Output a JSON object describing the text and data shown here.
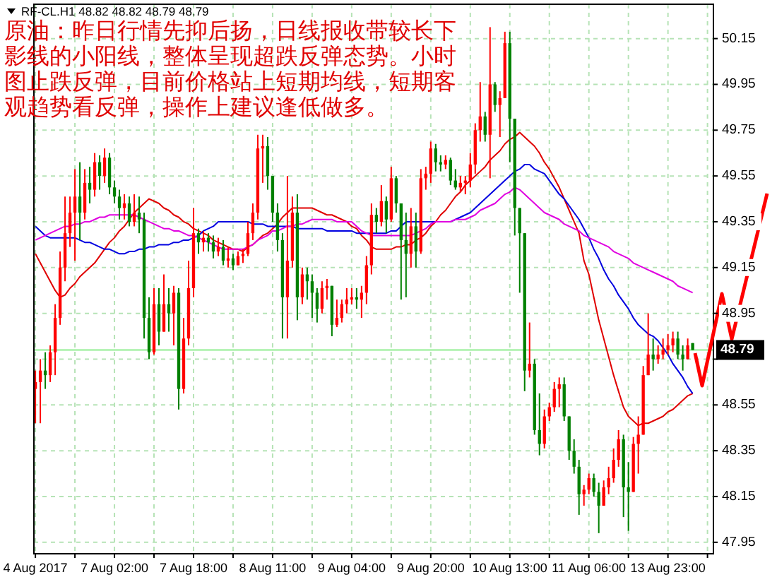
{
  "chart_data": {
    "type": "candlestick",
    "annotations": [
      "RF-CL.H1 48.82 48.82 48.79 48.79",
      "原油：昨日行情先抑后扬，日线报收带较长下影线的小阳线，整体呈现超跌反弹态势。小时图止跌反弹，目前价格站上短期均线，短期客观趋势看反弹，操作上建议逢低做多。"
    ],
    "categories": [
      "4 Aug 2017",
      null,
      null,
      null,
      null,
      null,
      null,
      null,
      null,
      null,
      null,
      null,
      null,
      null,
      null,
      null,
      "7 Aug 02:00",
      null,
      null,
      null,
      null,
      null,
      null,
      null,
      null,
      null,
      null,
      null,
      null,
      null,
      null,
      null,
      "7 Aug 18:00",
      null,
      null,
      null,
      null,
      null,
      null,
      null,
      null,
      null,
      null,
      null,
      null,
      null,
      null,
      null,
      "8 Aug 11:00",
      null,
      null,
      null,
      null,
      null,
      null,
      null,
      null,
      null,
      null,
      null,
      null,
      null,
      null,
      null,
      "9 Aug 04:00",
      null,
      null,
      null,
      null,
      null,
      null,
      null,
      null,
      null,
      null,
      null,
      null,
      null,
      null,
      null,
      "9 Aug 20:00",
      null,
      null,
      null,
      null,
      null,
      null,
      null,
      null,
      null,
      null,
      null,
      null,
      null,
      null,
      null,
      "10 Aug 13:00",
      null,
      null,
      null,
      null,
      null,
      null,
      null,
      null,
      null,
      null,
      null,
      null,
      null,
      null,
      null,
      "11 Aug 06:00",
      null,
      null,
      null,
      null,
      null,
      null,
      null,
      null,
      null,
      null,
      null,
      null,
      null,
      null,
      null,
      "13 Aug 23:00",
      null,
      null,
      null,
      null,
      null
    ],
    "ohlc": [
      [
        48.62,
        48.7,
        48.47,
        48.65
      ],
      [
        48.65,
        48.75,
        48.47,
        48.7
      ],
      [
        48.7,
        48.78,
        48.62,
        48.68
      ],
      [
        48.68,
        48.81,
        48.65,
        48.78
      ],
      [
        48.78,
        48.99,
        48.68,
        48.93
      ],
      [
        48.93,
        49.22,
        48.9,
        49.15
      ],
      [
        49.15,
        49.46,
        49.09,
        49.3
      ],
      [
        49.3,
        49.46,
        49.24,
        49.39
      ],
      [
        49.39,
        49.58,
        49.18,
        49.46
      ],
      [
        49.46,
        49.61,
        49.27,
        49.39
      ],
      [
        49.39,
        49.58,
        49.36,
        49.52
      ],
      [
        49.52,
        49.59,
        49.43,
        49.49
      ],
      [
        49.49,
        49.65,
        49.46,
        49.61
      ],
      [
        49.61,
        49.64,
        49.49,
        49.55
      ],
      [
        49.55,
        49.67,
        49.52,
        49.63
      ],
      [
        49.63,
        49.65,
        49.47,
        49.5
      ],
      [
        49.5,
        49.53,
        49.43,
        49.46
      ],
      [
        49.46,
        49.49,
        49.36,
        49.41
      ],
      [
        49.41,
        49.47,
        49.36,
        49.43
      ],
      [
        49.43,
        49.46,
        49.33,
        49.35
      ],
      [
        49.35,
        49.47,
        49.33,
        49.39
      ],
      [
        49.39,
        49.46,
        49.3,
        49.36
      ],
      [
        49.36,
        49.39,
        48.84,
        48.93
      ],
      [
        48.93,
        49.02,
        48.75,
        48.78
      ],
      [
        48.78,
        49.06,
        48.77,
        48.99
      ],
      [
        48.99,
        49.06,
        48.81,
        48.87
      ],
      [
        48.87,
        49.12,
        48.87,
        48.99
      ],
      [
        48.99,
        49.06,
        48.87,
        48.95
      ],
      [
        48.95,
        49.07,
        48.81,
        49.04
      ],
      [
        49.04,
        49.06,
        48.53,
        48.62
      ],
      [
        48.62,
        48.93,
        48.6,
        48.84
      ],
      [
        48.84,
        49.18,
        48.81,
        49.06
      ],
      [
        49.06,
        49.41,
        49.02,
        49.3
      ],
      [
        49.3,
        49.32,
        49.21,
        49.26
      ],
      [
        49.26,
        49.31,
        49.22,
        49.28
      ],
      [
        49.28,
        49.3,
        49.22,
        49.26
      ],
      [
        49.26,
        49.29,
        49.19,
        49.22
      ],
      [
        49.22,
        49.28,
        49.2,
        49.24
      ],
      [
        49.24,
        49.27,
        49.16,
        49.18
      ],
      [
        49.18,
        49.24,
        49.15,
        49.19
      ],
      [
        49.19,
        49.21,
        49.14,
        49.16
      ],
      [
        49.16,
        49.22,
        49.16,
        49.2
      ],
      [
        49.2,
        49.23,
        49.17,
        49.21
      ],
      [
        49.21,
        49.35,
        49.2,
        49.3
      ],
      [
        49.3,
        49.43,
        49.27,
        49.39
      ],
      [
        49.39,
        49.73,
        49.36,
        49.67
      ],
      [
        49.67,
        49.73,
        49.52,
        49.68
      ],
      [
        49.68,
        49.72,
        49.49,
        49.55
      ],
      [
        49.55,
        49.55,
        49.35,
        49.39
      ],
      [
        49.39,
        49.43,
        49.22,
        49.27
      ],
      [
        49.27,
        49.3,
        48.84,
        49.02
      ],
      [
        49.02,
        49.55,
        48.84,
        49.18
      ],
      [
        49.18,
        49.46,
        49.15,
        49.39
      ],
      [
        49.39,
        49.47,
        48.92,
        49.02
      ],
      [
        49.02,
        49.15,
        48.99,
        49.12
      ],
      [
        49.12,
        49.15,
        49.01,
        49.09
      ],
      [
        49.09,
        49.12,
        48.93,
        49.04
      ],
      [
        49.04,
        49.06,
        48.91,
        48.97
      ],
      [
        48.97,
        49.09,
        48.95,
        49.06
      ],
      [
        49.06,
        49.1,
        49.01,
        49.07
      ],
      [
        49.07,
        49.07,
        48.85,
        48.9
      ],
      [
        48.9,
        49.01,
        48.89,
        48.93
      ],
      [
        48.93,
        49.01,
        48.91,
        48.99
      ],
      [
        48.99,
        49.06,
        48.95,
        49.01
      ],
      [
        49.01,
        49.06,
        48.99,
        49.02
      ],
      [
        49.02,
        49.06,
        48.97,
        49.01
      ],
      [
        49.01,
        49.07,
        48.93,
        49.04
      ],
      [
        49.04,
        49.2,
        48.99,
        49.16
      ],
      [
        49.16,
        49.43,
        49.12,
        49.38
      ],
      [
        49.38,
        49.41,
        49.3,
        49.35
      ],
      [
        49.35,
        49.51,
        49.33,
        49.44
      ],
      [
        49.44,
        49.46,
        49.3,
        49.36
      ],
      [
        49.36,
        49.59,
        49.35,
        49.54
      ],
      [
        49.54,
        49.55,
        49.39,
        49.43
      ],
      [
        49.43,
        49.43,
        49.01,
        49.27
      ],
      [
        49.27,
        49.39,
        49.02,
        49.21
      ],
      [
        49.21,
        49.41,
        49.15,
        49.33
      ],
      [
        49.33,
        49.39,
        49.15,
        49.22
      ],
      [
        49.22,
        49.58,
        49.21,
        49.54
      ],
      [
        49.54,
        49.59,
        49.49,
        49.56
      ],
      [
        49.56,
        49.7,
        49.52,
        49.67
      ],
      [
        49.67,
        49.69,
        49.57,
        49.61
      ],
      [
        49.61,
        49.64,
        49.57,
        49.6
      ],
      [
        49.6,
        49.64,
        49.58,
        49.62
      ],
      [
        49.62,
        49.63,
        49.51,
        49.53
      ],
      [
        49.53,
        49.58,
        49.49,
        49.5
      ],
      [
        49.5,
        49.55,
        49.48,
        49.52
      ],
      [
        49.52,
        49.55,
        49.47,
        49.53
      ],
      [
        49.53,
        49.65,
        49.5,
        49.6
      ],
      [
        49.6,
        49.78,
        49.56,
        49.75
      ],
      [
        49.75,
        49.96,
        49.7,
        49.81
      ],
      [
        49.81,
        49.83,
        49.7,
        49.73
      ],
      [
        49.73,
        50.2,
        49.54,
        49.95
      ],
      [
        49.95,
        49.96,
        49.83,
        49.86
      ],
      [
        49.86,
        49.92,
        49.72,
        49.89
      ],
      [
        49.89,
        50.18,
        49.89,
        50.13
      ],
      [
        50.13,
        50.18,
        49.61,
        49.8
      ],
      [
        49.8,
        49.8,
        49.29,
        49.41
      ],
      [
        49.41,
        49.41,
        49.04,
        49.3
      ],
      [
        49.3,
        49.3,
        48.61,
        48.7
      ],
      [
        48.7,
        48.91,
        48.67,
        48.73
      ],
      [
        48.73,
        48.75,
        48.42,
        48.44
      ],
      [
        48.44,
        48.6,
        48.33,
        48.38
      ],
      [
        48.38,
        48.53,
        48.36,
        48.5
      ],
      [
        48.5,
        48.56,
        48.48,
        48.54
      ],
      [
        48.54,
        48.65,
        48.52,
        48.62
      ],
      [
        48.62,
        48.67,
        48.54,
        48.64
      ],
      [
        48.64,
        48.67,
        48.48,
        48.5
      ],
      [
        48.5,
        48.5,
        48.31,
        48.35
      ],
      [
        48.35,
        48.4,
        48.25,
        48.28
      ],
      [
        48.28,
        48.31,
        48.07,
        48.16
      ],
      [
        48.16,
        48.2,
        48.11,
        48.18
      ],
      [
        48.18,
        48.25,
        48.16,
        48.23
      ],
      [
        48.23,
        48.25,
        48.15,
        48.17
      ],
      [
        48.17,
        48.21,
        47.99,
        48.11
      ],
      [
        48.11,
        48.22,
        48.11,
        48.19
      ],
      [
        48.19,
        48.28,
        48.16,
        48.23
      ],
      [
        48.23,
        48.36,
        48.21,
        48.31
      ],
      [
        48.31,
        48.44,
        48.28,
        48.4
      ],
      [
        48.4,
        48.42,
        48.06,
        48.19
      ],
      [
        48.19,
        48.3,
        48.0,
        48.17
      ],
      [
        48.17,
        48.41,
        48.17,
        48.38
      ],
      [
        48.38,
        48.5,
        48.25,
        48.42
      ],
      [
        48.42,
        48.72,
        48.42,
        48.68
      ],
      [
        48.68,
        48.95,
        48.68,
        48.77
      ],
      [
        48.77,
        48.84,
        48.7,
        48.75
      ],
      [
        48.75,
        48.81,
        48.73,
        48.77
      ],
      [
        48.77,
        48.84,
        48.75,
        48.79
      ],
      [
        48.79,
        48.86,
        48.77,
        48.81
      ],
      [
        48.81,
        48.87,
        48.78,
        48.84
      ],
      [
        48.84,
        48.87,
        48.75,
        48.77
      ],
      [
        48.77,
        48.81,
        48.7,
        48.75
      ],
      [
        48.75,
        48.84,
        48.75,
        48.81
      ],
      [
        48.82,
        48.82,
        48.79,
        48.79
      ]
    ],
    "series": [
      {
        "type": "line",
        "color": "#e00000",
        "values": [
          49.21,
          49.17,
          49.13,
          49.09,
          49.05,
          49.02,
          49.03,
          49.06,
          49.08,
          49.11,
          49.13,
          49.15,
          49.17,
          49.2,
          49.23,
          49.26,
          49.28,
          49.31,
          49.33,
          49.36,
          49.39,
          49.41,
          49.43,
          49.45,
          49.44,
          49.43,
          49.41,
          49.4,
          49.38,
          49.37,
          49.35,
          49.34,
          49.32,
          49.31,
          49.3,
          49.29,
          49.27,
          49.26,
          49.25,
          49.24,
          49.23,
          49.23,
          49.22,
          49.24,
          49.25,
          49.27,
          49.29,
          49.3,
          49.32,
          49.34,
          49.37,
          49.39,
          49.41,
          49.41,
          49.41,
          49.41,
          49.41,
          49.4,
          49.39,
          49.38,
          49.38,
          49.37,
          49.36,
          49.35,
          49.33,
          49.32,
          49.29,
          49.27,
          49.24,
          49.23,
          49.23,
          49.23,
          49.23,
          49.24,
          49.24,
          49.25,
          49.25,
          49.27,
          49.28,
          49.3,
          49.33,
          49.35,
          49.38,
          49.4,
          49.43,
          49.46,
          49.48,
          49.51,
          49.53,
          49.55,
          49.57,
          49.59,
          49.62,
          49.64,
          49.66,
          49.69,
          49.71,
          49.72,
          49.74,
          49.72,
          49.7,
          49.68,
          49.65,
          49.61,
          49.58,
          49.54,
          49.5,
          49.45,
          49.4,
          49.35,
          49.3,
          49.18,
          49.12,
          49.02,
          48.92,
          48.84,
          48.76,
          48.68,
          48.61,
          48.54,
          48.5,
          48.48,
          48.46,
          48.47,
          48.47,
          48.48,
          48.49,
          48.5,
          48.52,
          48.53,
          48.55,
          48.57,
          48.59,
          48.6
        ]
      },
      {
        "type": "line",
        "color": "#0000e0",
        "values": [
          49.33,
          49.31,
          49.29,
          49.28,
          49.28,
          49.28,
          49.28,
          49.28,
          49.28,
          49.27,
          49.26,
          49.26,
          49.25,
          49.24,
          49.23,
          49.23,
          49.22,
          49.21,
          49.21,
          49.22,
          49.22,
          49.23,
          49.23,
          49.24,
          49.24,
          49.25,
          49.25,
          49.25,
          49.26,
          49.26,
          49.27,
          49.27,
          49.28,
          49.29,
          49.31,
          49.32,
          49.33,
          49.35,
          49.35,
          49.35,
          49.35,
          49.35,
          49.35,
          49.35,
          49.34,
          49.34,
          49.34,
          49.33,
          49.33,
          49.33,
          49.33,
          49.33,
          49.33,
          49.32,
          49.32,
          49.32,
          49.32,
          49.32,
          49.32,
          49.31,
          49.31,
          49.31,
          49.31,
          49.31,
          49.31,
          49.3,
          49.3,
          49.3,
          49.3,
          49.3,
          49.3,
          49.3,
          49.31,
          49.31,
          49.33,
          49.35,
          49.35,
          49.35,
          49.35,
          49.35,
          49.35,
          49.35,
          49.35,
          49.35,
          49.35,
          49.36,
          49.37,
          49.38,
          49.39,
          49.41,
          49.43,
          49.45,
          49.47,
          49.49,
          49.51,
          49.53,
          49.55,
          49.57,
          49.58,
          49.6,
          49.6,
          49.58,
          49.57,
          49.56,
          49.53,
          49.5,
          49.47,
          49.45,
          49.42,
          49.39,
          49.36,
          49.32,
          49.28,
          49.23,
          49.19,
          49.14,
          49.1,
          49.07,
          49.03,
          49.0,
          48.97,
          48.93,
          48.9,
          48.88,
          48.86,
          48.85,
          48.83,
          48.8,
          48.77,
          48.73,
          48.7,
          48.67,
          48.63,
          48.6
        ]
      },
      {
        "type": "line",
        "color": "#e000e0",
        "values": [
          49.27,
          49.28,
          49.29,
          49.3,
          49.31,
          49.32,
          49.33,
          49.33,
          49.34,
          49.34,
          49.35,
          49.35,
          49.36,
          49.37,
          49.37,
          49.38,
          49.38,
          49.38,
          49.38,
          49.38,
          49.38,
          49.37,
          49.36,
          49.35,
          49.34,
          49.33,
          49.32,
          49.32,
          49.31,
          49.31,
          49.3,
          49.29,
          49.29,
          49.28,
          49.27,
          49.26,
          49.25,
          49.24,
          49.23,
          49.23,
          49.23,
          49.23,
          49.23,
          49.24,
          49.25,
          49.27,
          49.28,
          49.29,
          49.31,
          49.31,
          49.32,
          49.33,
          49.33,
          49.34,
          49.34,
          49.35,
          49.36,
          49.36,
          49.36,
          49.36,
          49.36,
          49.35,
          49.35,
          49.35,
          49.35,
          49.33,
          49.31,
          49.3,
          49.29,
          49.29,
          49.29,
          49.29,
          49.29,
          49.29,
          49.29,
          49.29,
          49.29,
          49.3,
          49.31,
          49.32,
          49.34,
          49.35,
          49.35,
          49.35,
          49.35,
          49.36,
          49.36,
          49.36,
          49.37,
          49.38,
          49.4,
          49.41,
          49.42,
          49.43,
          49.45,
          49.47,
          49.48,
          49.5,
          49.49,
          49.47,
          49.45,
          49.43,
          49.41,
          49.39,
          49.38,
          49.37,
          49.36,
          49.34,
          49.33,
          49.32,
          49.31,
          49.29,
          49.28,
          49.27,
          49.26,
          49.25,
          49.24,
          49.22,
          49.21,
          49.2,
          49.19,
          49.17,
          49.16,
          49.15,
          49.14,
          49.13,
          49.12,
          49.11,
          49.1,
          49.09,
          49.07,
          49.06,
          49.05,
          49.04
        ]
      }
    ],
    "ylim": [
      47.9,
      50.3
    ],
    "yticks": [
      50.15,
      49.95,
      49.75,
      49.55,
      49.35,
      49.15,
      48.95,
      {
        "value": 48.75,
        "label": null
      },
      48.55,
      48.35,
      48.15,
      47.95
    ],
    "grid": true,
    "ref_lines": [
      {
        "axis": "y",
        "value": 48.79,
        "label": "48.79",
        "color": "#90ee90"
      }
    ]
  }
}
